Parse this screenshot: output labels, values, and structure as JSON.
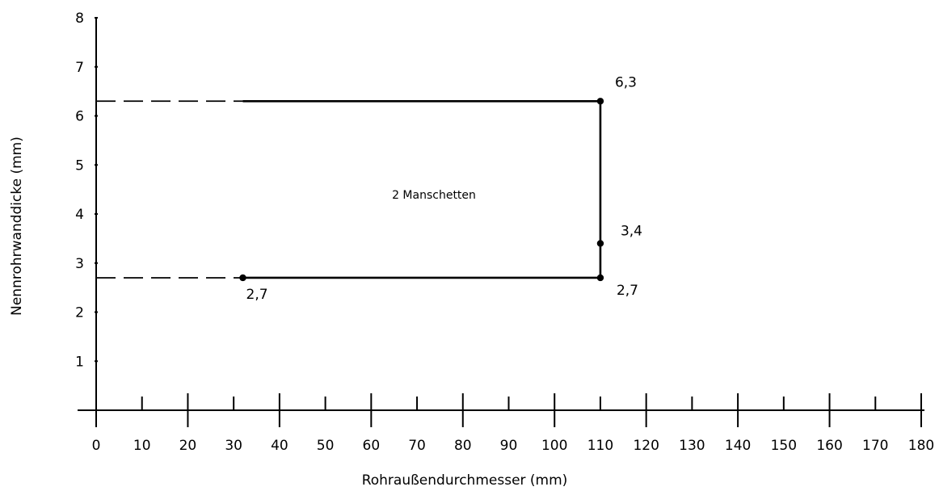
{
  "chart_data": {
    "type": "line",
    "title": "",
    "xlabel": "Rohraußendurchmesser (mm)",
    "ylabel": "Nennrohrwanddicke (mm)",
    "xlim": [
      0,
      180
    ],
    "ylim": [
      0,
      8
    ],
    "x_ticks": [
      "0",
      "10",
      "20",
      "30",
      "40",
      "50",
      "60",
      "70",
      "80",
      "90",
      "100",
      "110",
      "120",
      "130",
      "140",
      "150",
      "160",
      "170",
      "180"
    ],
    "y_ticks": [
      "1",
      "2",
      "3",
      "4",
      "5",
      "6",
      "7",
      "8"
    ],
    "grid": false,
    "legend": "none",
    "region_label": "2 Manschetten",
    "region": {
      "solid": [
        {
          "x": [
            32,
            110
          ],
          "y": [
            6.3,
            6.3
          ]
        },
        {
          "x": [
            110,
            110
          ],
          "y": [
            6.3,
            2.7
          ]
        },
        {
          "x": [
            32,
            110
          ],
          "y": [
            2.7,
            2.7
          ]
        }
      ],
      "dashed": [
        {
          "x": [
            0,
            32
          ],
          "y": [
            6.3,
            6.3
          ]
        },
        {
          "x": [
            0,
            32
          ],
          "y": [
            2.7,
            2.7
          ]
        }
      ]
    },
    "points": [
      {
        "x": 110,
        "y": 6.3,
        "label": "6,3"
      },
      {
        "x": 110,
        "y": 3.4,
        "label": "3,4"
      },
      {
        "x": 110,
        "y": 2.7,
        "label": "2,7"
      },
      {
        "x": 32,
        "y": 2.7,
        "label": "2,7"
      }
    ]
  }
}
